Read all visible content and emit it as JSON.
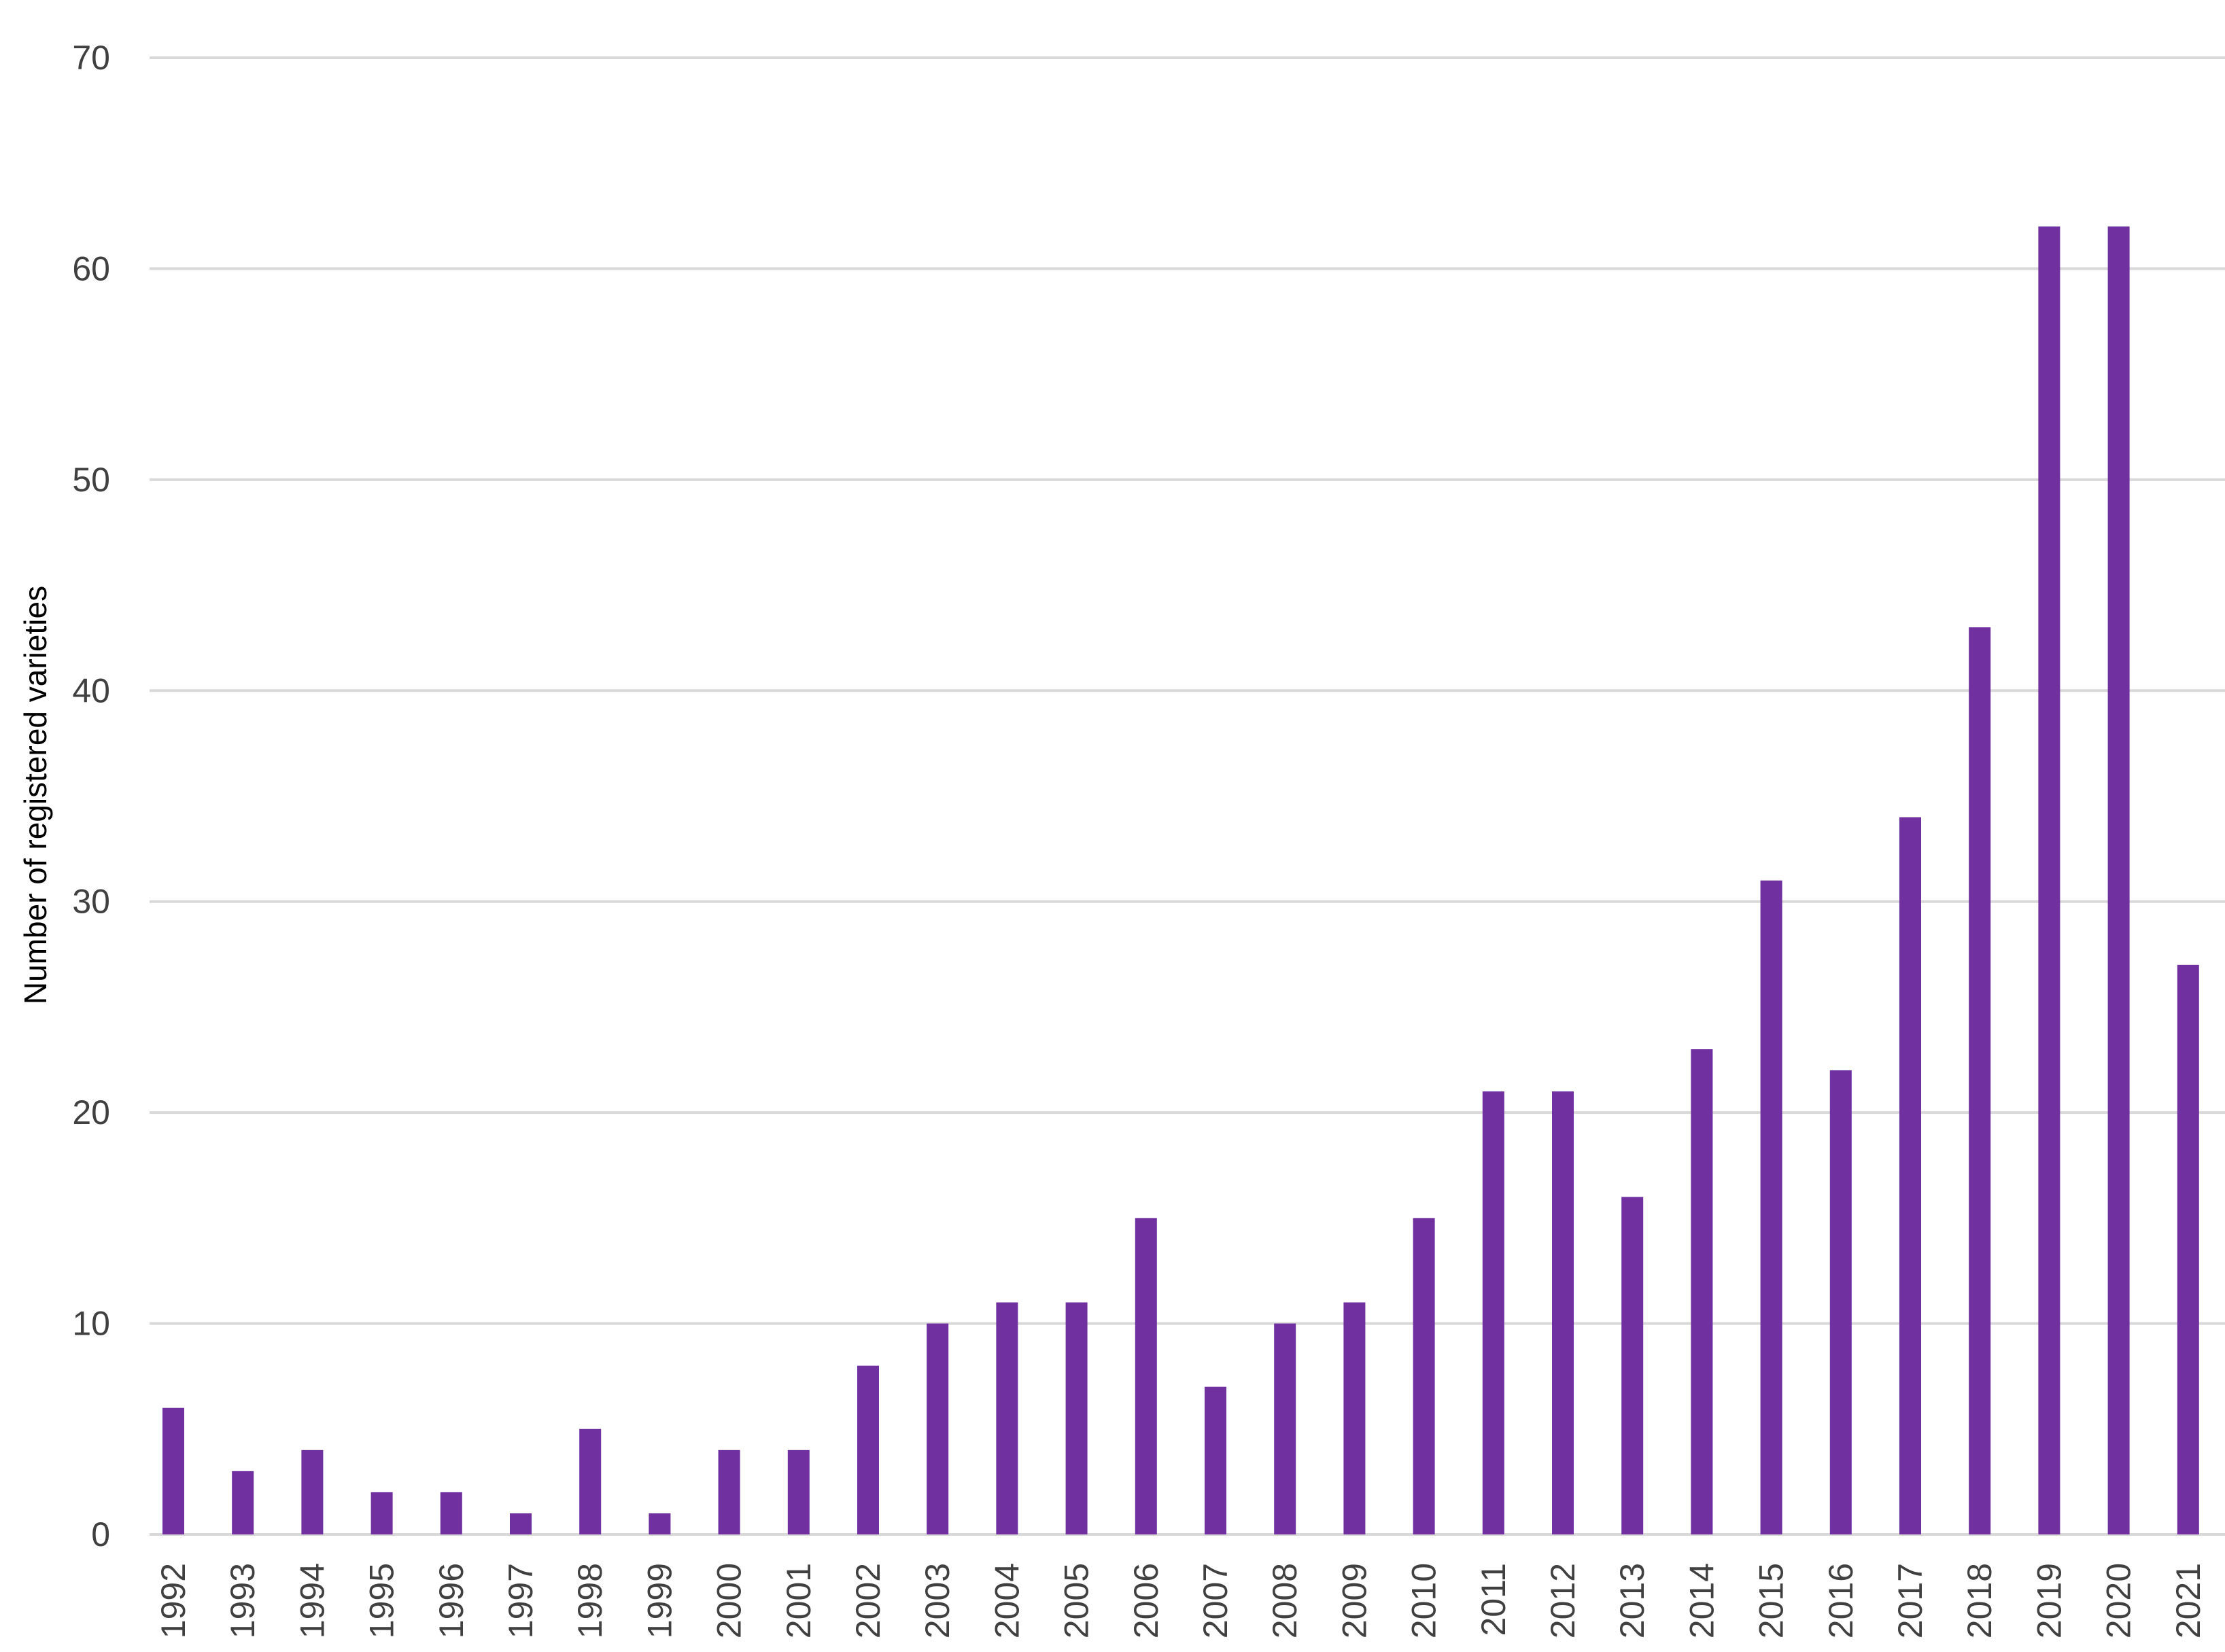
{
  "chart_data": {
    "type": "bar",
    "title": "",
    "xlabel": "",
    "ylabel": "Number of registered varieties",
    "ylim": [
      0,
      70
    ],
    "yticks": [
      0,
      10,
      20,
      30,
      40,
      50,
      60,
      70
    ],
    "grid": true,
    "legend": "none",
    "bar_color": "#7030A0",
    "grid_color": "#D9D9D9",
    "categories": [
      "1992",
      "1993",
      "1994",
      "1995",
      "1996",
      "1997",
      "1998",
      "1999",
      "2000",
      "2001",
      "2002",
      "2003",
      "2004",
      "2005",
      "2006",
      "2007",
      "2008",
      "2009",
      "2010",
      "2011",
      "2012",
      "2013",
      "2014",
      "2015",
      "2016",
      "2017",
      "2018",
      "2019",
      "2020",
      "2021"
    ],
    "values": [
      6,
      3,
      4,
      2,
      2,
      1,
      5,
      1,
      4,
      4,
      8,
      10,
      11,
      11,
      15,
      7,
      10,
      11,
      15,
      21,
      21,
      16,
      23,
      31,
      22,
      34,
      43,
      62,
      62,
      27
    ]
  }
}
